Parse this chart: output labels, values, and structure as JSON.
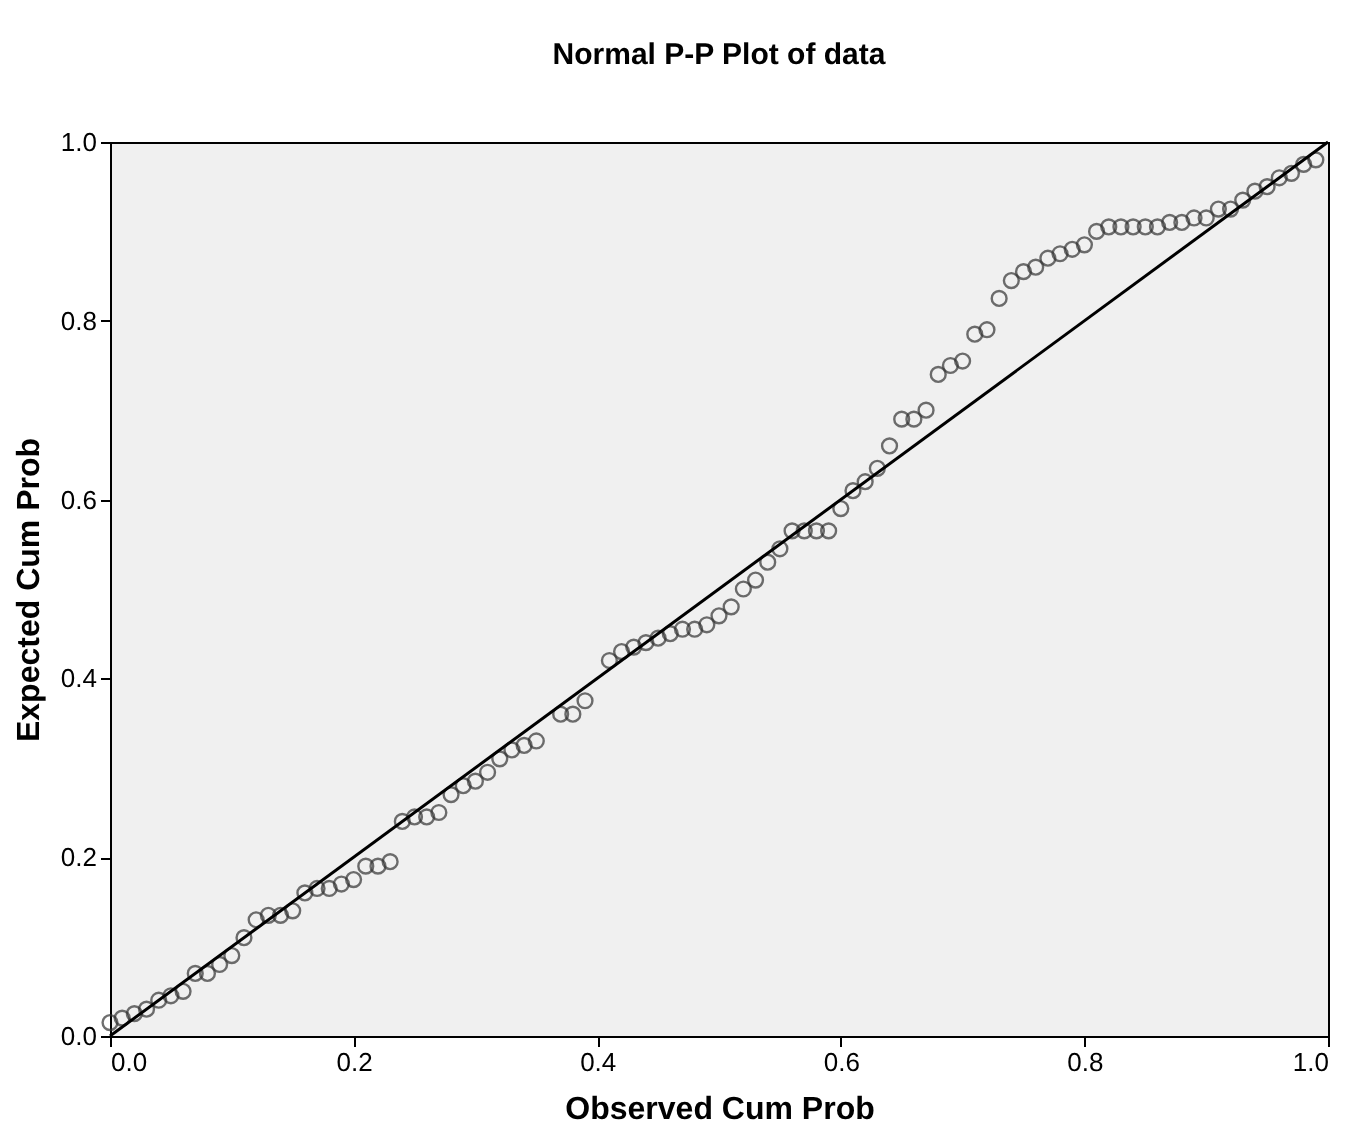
{
  "chart_data": {
    "type": "scatter",
    "title": "Normal P-P Plot of data",
    "xlabel": "Observed Cum Prob",
    "ylabel": "Expected Cum Prob",
    "xlim": [
      0,
      1
    ],
    "ylim": [
      0,
      1
    ],
    "xticks": [
      {
        "value": 0,
        "label": "0.0"
      },
      0.2,
      0.4,
      0.6,
      0.8,
      {
        "value": 1,
        "label": "1.0"
      }
    ],
    "yticks": [
      {
        "value": 0,
        "label": "0.0"
      },
      0.2,
      0.4,
      0.6,
      0.8,
      {
        "value": 1,
        "label": "1.0"
      }
    ],
    "grid": false,
    "series": [
      {
        "type": "scatter",
        "marker": "circle",
        "color": "#333333",
        "x": [
          0.0,
          0.01,
          0.02,
          0.03,
          0.04,
          0.05,
          0.06,
          0.07,
          0.08,
          0.09,
          0.1,
          0.11,
          0.12,
          0.13,
          0.14,
          0.15,
          0.16,
          0.17,
          0.18,
          0.19,
          0.2,
          0.21,
          0.22,
          0.23,
          0.24,
          0.25,
          0.26,
          0.27,
          0.28,
          0.29,
          0.3,
          0.31,
          0.32,
          0.33,
          0.34,
          0.35,
          0.37,
          0.38,
          0.39,
          0.41,
          0.42,
          0.43,
          0.44,
          0.45,
          0.46,
          0.47,
          0.48,
          0.49,
          0.5,
          0.51,
          0.52,
          0.53,
          0.54,
          0.55,
          0.56,
          0.57,
          0.58,
          0.59,
          0.6,
          0.61,
          0.62,
          0.63,
          0.64,
          0.65,
          0.66,
          0.67,
          0.68,
          0.69,
          0.7,
          0.71,
          0.72,
          0.73,
          0.74,
          0.75,
          0.76,
          0.77,
          0.78,
          0.79,
          0.8,
          0.81,
          0.82,
          0.83,
          0.84,
          0.85,
          0.86,
          0.87,
          0.88,
          0.89,
          0.9,
          0.91,
          0.92,
          0.93,
          0.94,
          0.95,
          0.96,
          0.97,
          0.98,
          0.99
        ],
        "values": [
          0.015,
          0.02,
          0.025,
          0.03,
          0.04,
          0.045,
          0.05,
          0.07,
          0.07,
          0.08,
          0.09,
          0.11,
          0.13,
          0.135,
          0.135,
          0.14,
          0.16,
          0.165,
          0.165,
          0.17,
          0.175,
          0.19,
          0.19,
          0.195,
          0.24,
          0.245,
          0.245,
          0.25,
          0.27,
          0.28,
          0.285,
          0.295,
          0.31,
          0.32,
          0.325,
          0.33,
          0.36,
          0.36,
          0.375,
          0.42,
          0.43,
          0.435,
          0.44,
          0.445,
          0.45,
          0.455,
          0.455,
          0.46,
          0.47,
          0.48,
          0.5,
          0.51,
          0.53,
          0.545,
          0.565,
          0.565,
          0.565,
          0.565,
          0.59,
          0.61,
          0.62,
          0.635,
          0.66,
          0.69,
          0.69,
          0.7,
          0.74,
          0.75,
          0.755,
          0.785,
          0.79,
          0.825,
          0.845,
          0.855,
          0.86,
          0.87,
          0.875,
          0.88,
          0.885,
          0.9,
          0.905,
          0.905,
          0.905,
          0.905,
          0.905,
          0.91,
          0.91,
          0.915,
          0.915,
          0.925,
          0.925,
          0.935,
          0.945,
          0.95,
          0.96,
          0.965,
          0.975,
          0.98
        ]
      },
      {
        "type": "line",
        "color": "#000000",
        "x": [
          0,
          1
        ],
        "values": [
          0,
          1
        ],
        "marker": "none",
        "line_style": "solid"
      }
    ]
  }
}
